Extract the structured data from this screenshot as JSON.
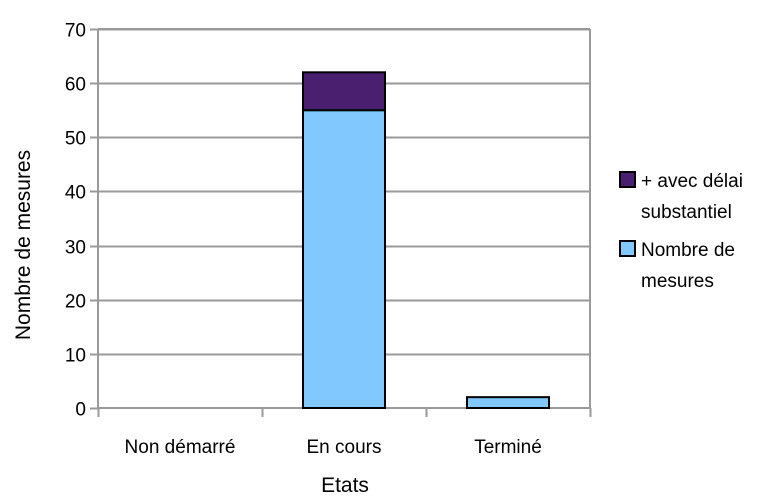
{
  "chart_data": {
    "type": "bar",
    "stacked": true,
    "categories": [
      "Non démarré",
      "En cours",
      "Terminé"
    ],
    "series": [
      {
        "name": "Nombre de mesures",
        "values": [
          0,
          55,
          2
        ],
        "color": "#80C8FF"
      },
      {
        "name": "+ avec délai substantiel",
        "values": [
          0,
          7,
          0
        ],
        "color": "#4B1F6F"
      }
    ],
    "legend": {
      "placement": "right",
      "entries": [
        {
          "series_index": 1,
          "lines": [
            "+ avec délai",
            "substantiel"
          ]
        },
        {
          "series_index": 0,
          "lines": [
            "Nombre de",
            "mesures"
          ]
        }
      ]
    },
    "xlabel": "Etats",
    "ylabel": "Nombre de mesures",
    "ylim": [
      0,
      70
    ],
    "yticks": [
      0,
      10,
      20,
      30,
      40,
      50,
      60,
      70
    ],
    "grid": true,
    "axis_color": "#9a9a9a",
    "bar_outline": "#000000"
  }
}
